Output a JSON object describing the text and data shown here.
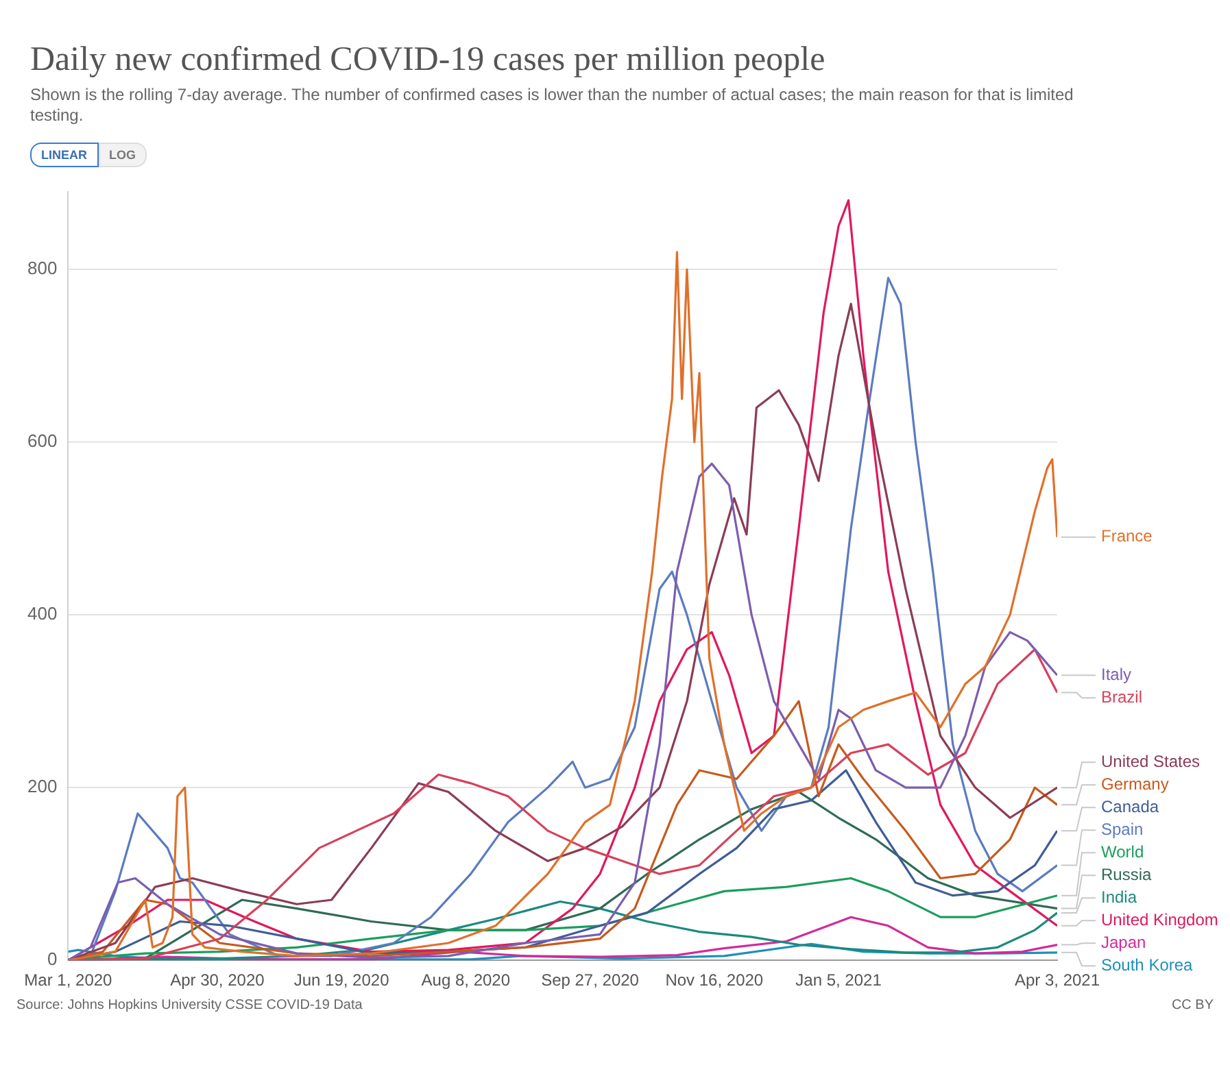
{
  "chart_data": {
    "type": "line",
    "title": "Daily new confirmed COVID-19 cases per million people",
    "subtitle": "Shown is the rolling 7-day average. The number of confirmed cases is lower than the number of actual cases; the main reason for that is limited testing.",
    "annotations": [
      "LINEAR",
      "LOG",
      "Source: Johns Hopkins University CSSE COVID-19 Data",
      "CC BY"
    ],
    "xlim": [
      "2020-03-01",
      "2021-04-03"
    ],
    "xticks": [
      {
        "value": "2020-03-01",
        "label": "Mar 1, 2020"
      },
      {
        "value": "2020-04-30",
        "label": "Apr 30, 2020"
      },
      {
        "value": "2020-06-19",
        "label": "Jun 19, 2020"
      },
      {
        "value": "2020-08-08",
        "label": "Aug 8, 2020"
      },
      {
        "value": "2020-09-27",
        "label": "Sep 27, 2020"
      },
      {
        "value": "2020-11-16",
        "label": "Nov 16, 2020"
      },
      {
        "value": "2021-01-05",
        "label": "Jan 5, 2021"
      },
      {
        "value": "2021-04-03",
        "label": "Apr 3, 2021"
      }
    ],
    "ylim": [
      0,
      890
    ],
    "yticks": [
      0,
      200,
      400,
      600,
      800
    ],
    "grid": "y",
    "marker": "none",
    "series": [
      {
        "name": "France",
        "color": "#e0702a",
        "x": [
          "2020-03-01",
          "2020-03-20",
          "2020-04-01",
          "2020-04-04",
          "2020-04-08",
          "2020-04-12",
          "2020-04-14",
          "2020-04-17",
          "2020-04-20",
          "2020-04-25",
          "2020-05-10",
          "2020-06-01",
          "2020-07-01",
          "2020-08-01",
          "2020-08-20",
          "2020-09-10",
          "2020-09-25",
          "2020-10-05",
          "2020-10-15",
          "2020-10-22",
          "2020-10-26",
          "2020-10-30",
          "2020-11-01",
          "2020-11-03",
          "2020-11-05",
          "2020-11-08",
          "2020-11-10",
          "2020-11-14",
          "2020-11-20",
          "2020-11-28",
          "2020-12-05",
          "2020-12-15",
          "2020-12-25",
          "2021-01-05",
          "2021-01-15",
          "2021-01-25",
          "2021-02-05",
          "2021-02-15",
          "2021-02-25",
          "2021-03-05",
          "2021-03-15",
          "2021-03-25",
          "2021-03-30",
          "2021-04-01",
          "2021-04-03"
        ],
        "values": [
          0,
          10,
          70,
          15,
          20,
          50,
          190,
          200,
          30,
          15,
          10,
          5,
          8,
          20,
          40,
          100,
          160,
          180,
          300,
          450,
          560,
          650,
          820,
          650,
          800,
          600,
          680,
          350,
          250,
          150,
          170,
          190,
          200,
          270,
          290,
          300,
          310,
          270,
          320,
          340,
          400,
          520,
          570,
          580,
          490
        ]
      },
      {
        "name": "Italy",
        "color": "#7b5eb0",
        "x": [
          "2020-03-01",
          "2020-03-10",
          "2020-03-21",
          "2020-03-28",
          "2020-04-10",
          "2020-05-01",
          "2020-06-01",
          "2020-07-01",
          "2020-08-01",
          "2020-09-01",
          "2020-10-01",
          "2020-10-15",
          "2020-10-25",
          "2020-11-01",
          "2020-11-10",
          "2020-11-15",
          "2020-11-22",
          "2020-12-01",
          "2020-12-10",
          "2020-12-20",
          "2020-12-28",
          "2021-01-05",
          "2021-01-10",
          "2021-01-20",
          "2021-02-01",
          "2021-02-15",
          "2021-02-25",
          "2021-03-05",
          "2021-03-15",
          "2021-03-22",
          "2021-04-03"
        ],
        "values": [
          0,
          15,
          90,
          95,
          65,
          30,
          8,
          3,
          5,
          20,
          30,
          90,
          250,
          450,
          560,
          575,
          550,
          400,
          300,
          250,
          210,
          290,
          280,
          220,
          200,
          200,
          260,
          340,
          380,
          370,
          330
        ]
      },
      {
        "name": "Brazil",
        "color": "#d6415c",
        "x": [
          "2020-03-01",
          "2020-04-01",
          "2020-05-01",
          "2020-05-20",
          "2020-06-10",
          "2020-06-25",
          "2020-07-10",
          "2020-07-28",
          "2020-08-10",
          "2020-08-25",
          "2020-09-10",
          "2020-09-25",
          "2020-10-10",
          "2020-10-25",
          "2020-11-10",
          "2020-11-25",
          "2020-12-10",
          "2020-12-25",
          "2021-01-10",
          "2021-01-25",
          "2021-02-10",
          "2021-02-25",
          "2021-03-10",
          "2021-03-25",
          "2021-04-03"
        ],
        "values": [
          0,
          2,
          25,
          70,
          130,
          150,
          170,
          215,
          205,
          190,
          150,
          130,
          115,
          100,
          110,
          150,
          190,
          200,
          240,
          250,
          215,
          240,
          320,
          360,
          310
        ]
      },
      {
        "name": "United States",
        "color": "#8c3c55",
        "x": [
          "2020-03-01",
          "2020-03-20",
          "2020-04-05",
          "2020-04-20",
          "2020-05-10",
          "2020-06-01",
          "2020-06-15",
          "2020-07-01",
          "2020-07-20",
          "2020-08-01",
          "2020-08-20",
          "2020-09-10",
          "2020-09-25",
          "2020-10-10",
          "2020-10-25",
          "2020-11-05",
          "2020-11-14",
          "2020-11-24",
          "2020-11-29",
          "2020-12-03",
          "2020-12-12",
          "2020-12-20",
          "2020-12-28",
          "2021-01-05",
          "2021-01-10",
          "2021-01-20",
          "2021-02-01",
          "2021-02-15",
          "2021-03-01",
          "2021-03-15",
          "2021-04-03"
        ],
        "values": [
          0,
          20,
          85,
          95,
          80,
          65,
          70,
          130,
          205,
          195,
          150,
          115,
          130,
          155,
          200,
          300,
          435,
          535,
          493,
          640,
          660,
          620,
          555,
          700,
          760,
          600,
          430,
          260,
          200,
          165,
          200
        ]
      },
      {
        "name": "Germany",
        "color": "#c65a1c",
        "x": [
          "2020-03-01",
          "2020-03-15",
          "2020-04-01",
          "2020-04-10",
          "2020-05-01",
          "2020-06-01",
          "2020-07-01",
          "2020-08-01",
          "2020-09-01",
          "2020-10-01",
          "2020-10-15",
          "2020-11-01",
          "2020-11-10",
          "2020-11-25",
          "2020-12-10",
          "2020-12-20",
          "2020-12-28",
          "2021-01-05",
          "2021-01-15",
          "2021-02-01",
          "2021-02-15",
          "2021-03-01",
          "2021-03-15",
          "2021-03-25",
          "2021-04-03"
        ],
        "values": [
          0,
          10,
          70,
          65,
          20,
          8,
          5,
          10,
          15,
          25,
          60,
          180,
          220,
          210,
          260,
          300,
          190,
          250,
          210,
          150,
          95,
          100,
          140,
          200,
          180
        ]
      },
      {
        "name": "Canada",
        "color": "#3f5d96",
        "x": [
          "2020-03-01",
          "2020-03-20",
          "2020-04-15",
          "2020-05-05",
          "2020-06-01",
          "2020-07-01",
          "2020-08-01",
          "2020-09-01",
          "2020-10-01",
          "2020-10-20",
          "2020-11-10",
          "2020-11-25",
          "2020-12-10",
          "2020-12-25",
          "2021-01-08",
          "2021-01-20",
          "2021-02-05",
          "2021-02-20",
          "2021-03-10",
          "2021-03-25",
          "2021-04-03"
        ],
        "values": [
          0,
          10,
          45,
          40,
          25,
          8,
          10,
          15,
          40,
          55,
          100,
          130,
          175,
          185,
          220,
          160,
          90,
          75,
          80,
          110,
          150
        ]
      },
      {
        "name": "Spain",
        "color": "#5a7cc0",
        "x": [
          "2020-03-01",
          "2020-03-10",
          "2020-03-20",
          "2020-03-29",
          "2020-04-10",
          "2020-04-15",
          "2020-04-20",
          "2020-05-05",
          "2020-05-25",
          "2020-06-15",
          "2020-07-10",
          "2020-07-25",
          "2020-08-10",
          "2020-08-25",
          "2020-09-10",
          "2020-09-20",
          "2020-09-25",
          "2020-10-05",
          "2020-10-15",
          "2020-10-25",
          "2020-10-30",
          "2020-11-05",
          "2020-11-15",
          "2020-11-25",
          "2020-12-05",
          "2020-12-15",
          "2020-12-25",
          "2021-01-01",
          "2021-01-10",
          "2021-01-17",
          "2021-01-25",
          "2021-01-30",
          "2021-02-05",
          "2021-02-12",
          "2021-02-20",
          "2021-03-01",
          "2021-03-10",
          "2021-03-20",
          "2021-04-03"
        ],
        "values": [
          0,
          5,
          80,
          170,
          130,
          95,
          90,
          30,
          5,
          5,
          20,
          50,
          100,
          160,
          200,
          230,
          200,
          210,
          270,
          430,
          450,
          400,
          300,
          200,
          150,
          190,
          200,
          270,
          500,
          640,
          790,
          760,
          600,
          450,
          250,
          150,
          100,
          80,
          110
        ]
      },
      {
        "name": "World",
        "color": "#1a9e5c",
        "x": [
          "2020-03-01",
          "2020-04-01",
          "2020-05-01",
          "2020-06-01",
          "2020-07-01",
          "2020-08-01",
          "2020-09-01",
          "2020-10-01",
          "2020-11-01",
          "2020-11-20",
          "2020-12-15",
          "2021-01-10",
          "2021-01-25",
          "2021-02-15",
          "2021-03-01",
          "2021-04-03"
        ],
        "values": [
          1,
          8,
          10,
          15,
          25,
          35,
          35,
          40,
          65,
          80,
          85,
          95,
          80,
          50,
          50,
          75
        ]
      },
      {
        "name": "United Kingdom",
        "color": "#e0185e",
        "x": [
          "2020-03-01",
          "2020-03-25",
          "2020-04-10",
          "2020-04-25",
          "2020-05-15",
          "2020-06-01",
          "2020-07-01",
          "2020-08-01",
          "2020-09-01",
          "2020-09-20",
          "2020-10-01",
          "2020-10-15",
          "2020-10-25",
          "2020-11-05",
          "2020-11-15",
          "2020-11-22",
          "2020-12-01",
          "2020-12-10",
          "2020-12-20",
          "2020-12-30",
          "2021-01-05",
          "2021-01-09",
          "2021-01-15",
          "2021-01-25",
          "2021-02-05",
          "2021-02-15",
          "2021-03-01",
          "2021-03-15",
          "2021-04-03"
        ],
        "values": [
          0,
          40,
          70,
          70,
          45,
          25,
          10,
          12,
          20,
          60,
          100,
          200,
          300,
          360,
          380,
          330,
          240,
          260,
          500,
          750,
          850,
          880,
          700,
          450,
          300,
          180,
          110,
          80,
          40
        ]
      },
      {
        "name": "Russia",
        "color": "#2f6b55",
        "x": [
          "2020-03-01",
          "2020-04-01",
          "2020-05-10",
          "2020-06-01",
          "2020-07-01",
          "2020-08-01",
          "2020-09-01",
          "2020-10-01",
          "2020-10-20",
          "2020-11-10",
          "2020-12-01",
          "2020-12-20",
          "2021-01-05",
          "2021-01-20",
          "2021-02-10",
          "2021-03-01",
          "2021-04-03"
        ],
        "values": [
          0,
          2,
          70,
          60,
          45,
          35,
          35,
          60,
          100,
          140,
          175,
          195,
          165,
          140,
          95,
          75,
          60
        ]
      },
      {
        "name": "India",
        "color": "#1a8a80",
        "x": [
          "2020-03-01",
          "2020-05-01",
          "2020-06-01",
          "2020-07-01",
          "2020-08-01",
          "2020-08-20",
          "2020-09-15",
          "2020-10-01",
          "2020-10-20",
          "2020-11-10",
          "2020-12-01",
          "2020-12-20",
          "2021-01-10",
          "2021-02-01",
          "2021-02-20",
          "2021-03-10",
          "2021-03-25",
          "2021-04-03"
        ],
        "values": [
          0,
          2,
          5,
          13,
          35,
          48,
          68,
          60,
          45,
          33,
          27,
          18,
          13,
          9,
          9,
          15,
          35,
          55
        ]
      },
      {
        "name": "Japan",
        "color": "#d12b9a",
        "x": [
          "2020-03-01",
          "2020-04-10",
          "2020-05-15",
          "2020-07-01",
          "2020-08-05",
          "2020-09-01",
          "2020-10-01",
          "2020-11-01",
          "2020-11-20",
          "2020-12-15",
          "2021-01-10",
          "2021-01-25",
          "2021-02-10",
          "2021-03-01",
          "2021-03-20",
          "2021-04-03"
        ],
        "values": [
          0,
          4,
          1,
          1,
          10,
          5,
          4,
          6,
          14,
          22,
          50,
          40,
          15,
          8,
          10,
          18
        ]
      },
      {
        "name": "South Korea",
        "color": "#1f8fb8",
        "x": [
          "2020-03-01",
          "2020-03-05",
          "2020-03-20",
          "2020-04-10",
          "2020-06-01",
          "2020-08-10",
          "2020-08-30",
          "2020-10-10",
          "2020-11-20",
          "2020-12-25",
          "2021-01-15",
          "2021-02-10",
          "2021-03-10",
          "2021-04-03"
        ],
        "values": [
          10,
          12,
          5,
          1,
          1,
          1,
          5,
          2,
          5,
          19,
          10,
          8,
          8,
          9
        ]
      }
    ]
  }
}
